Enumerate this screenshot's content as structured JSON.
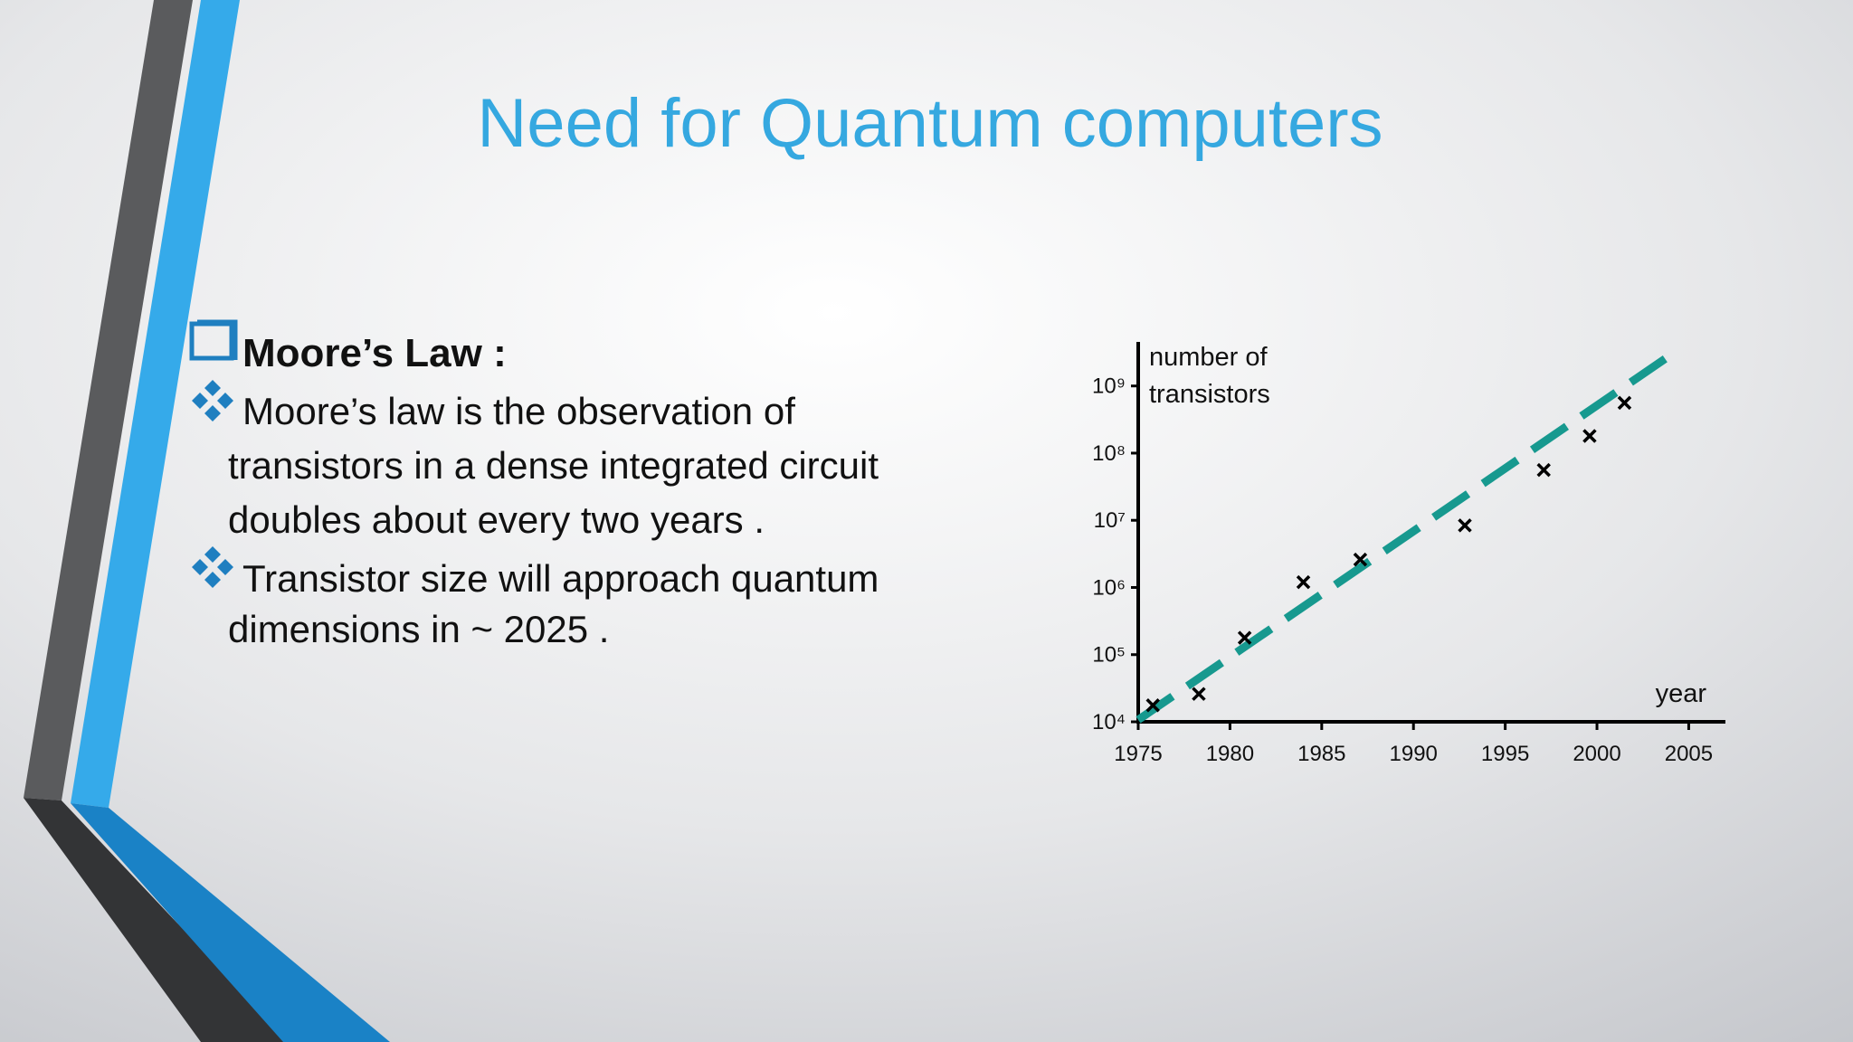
{
  "slide": {
    "title": "Need for Quantum computers",
    "heading": "Moore’s Law :",
    "bullets": [
      [
        "Moore’s law is the observation of",
        "transistors in a dense integrated circuit",
        "doubles about every two years ."
      ],
      [
        "Transistor size will approach quantum",
        "dimensions in ~ 2025 ."
      ]
    ]
  },
  "chart_data": {
    "type": "scatter",
    "log_y": true,
    "xlabel": "year",
    "ylabel": [
      "number of",
      "transistors"
    ],
    "x": [
      1975.8,
      1978.3,
      1980.8,
      1984.0,
      1987.1,
      1992.8,
      1997.1,
      1999.6,
      2001.5
    ],
    "values": [
      17600,
      26000,
      178000,
      1200000,
      2600000,
      8400000,
      56000000,
      180000000,
      560000000
    ],
    "color": "#000000",
    "trend": {
      "x": [
        1975,
        2004.1
      ],
      "values": [
        10700,
        3000000000
      ],
      "color": "#17998f",
      "dashed": true
    },
    "xlim": [
      1975,
      2007
    ],
    "ylim": [
      10000,
      4000000000
    ],
    "xticks": [
      1975,
      1980,
      1985,
      1990,
      1995,
      2000,
      2005
    ],
    "yticks": [
      {
        "value": 10000,
        "label": "10⁴"
      },
      {
        "value": 100000,
        "label": "10⁵"
      },
      {
        "value": 1000000,
        "label": "10⁶"
      },
      {
        "value": 10000000,
        "label": "10⁷"
      },
      {
        "value": 100000000,
        "label": "10⁸"
      },
      {
        "value": 1000000000,
        "label": "10⁹"
      }
    ]
  }
}
